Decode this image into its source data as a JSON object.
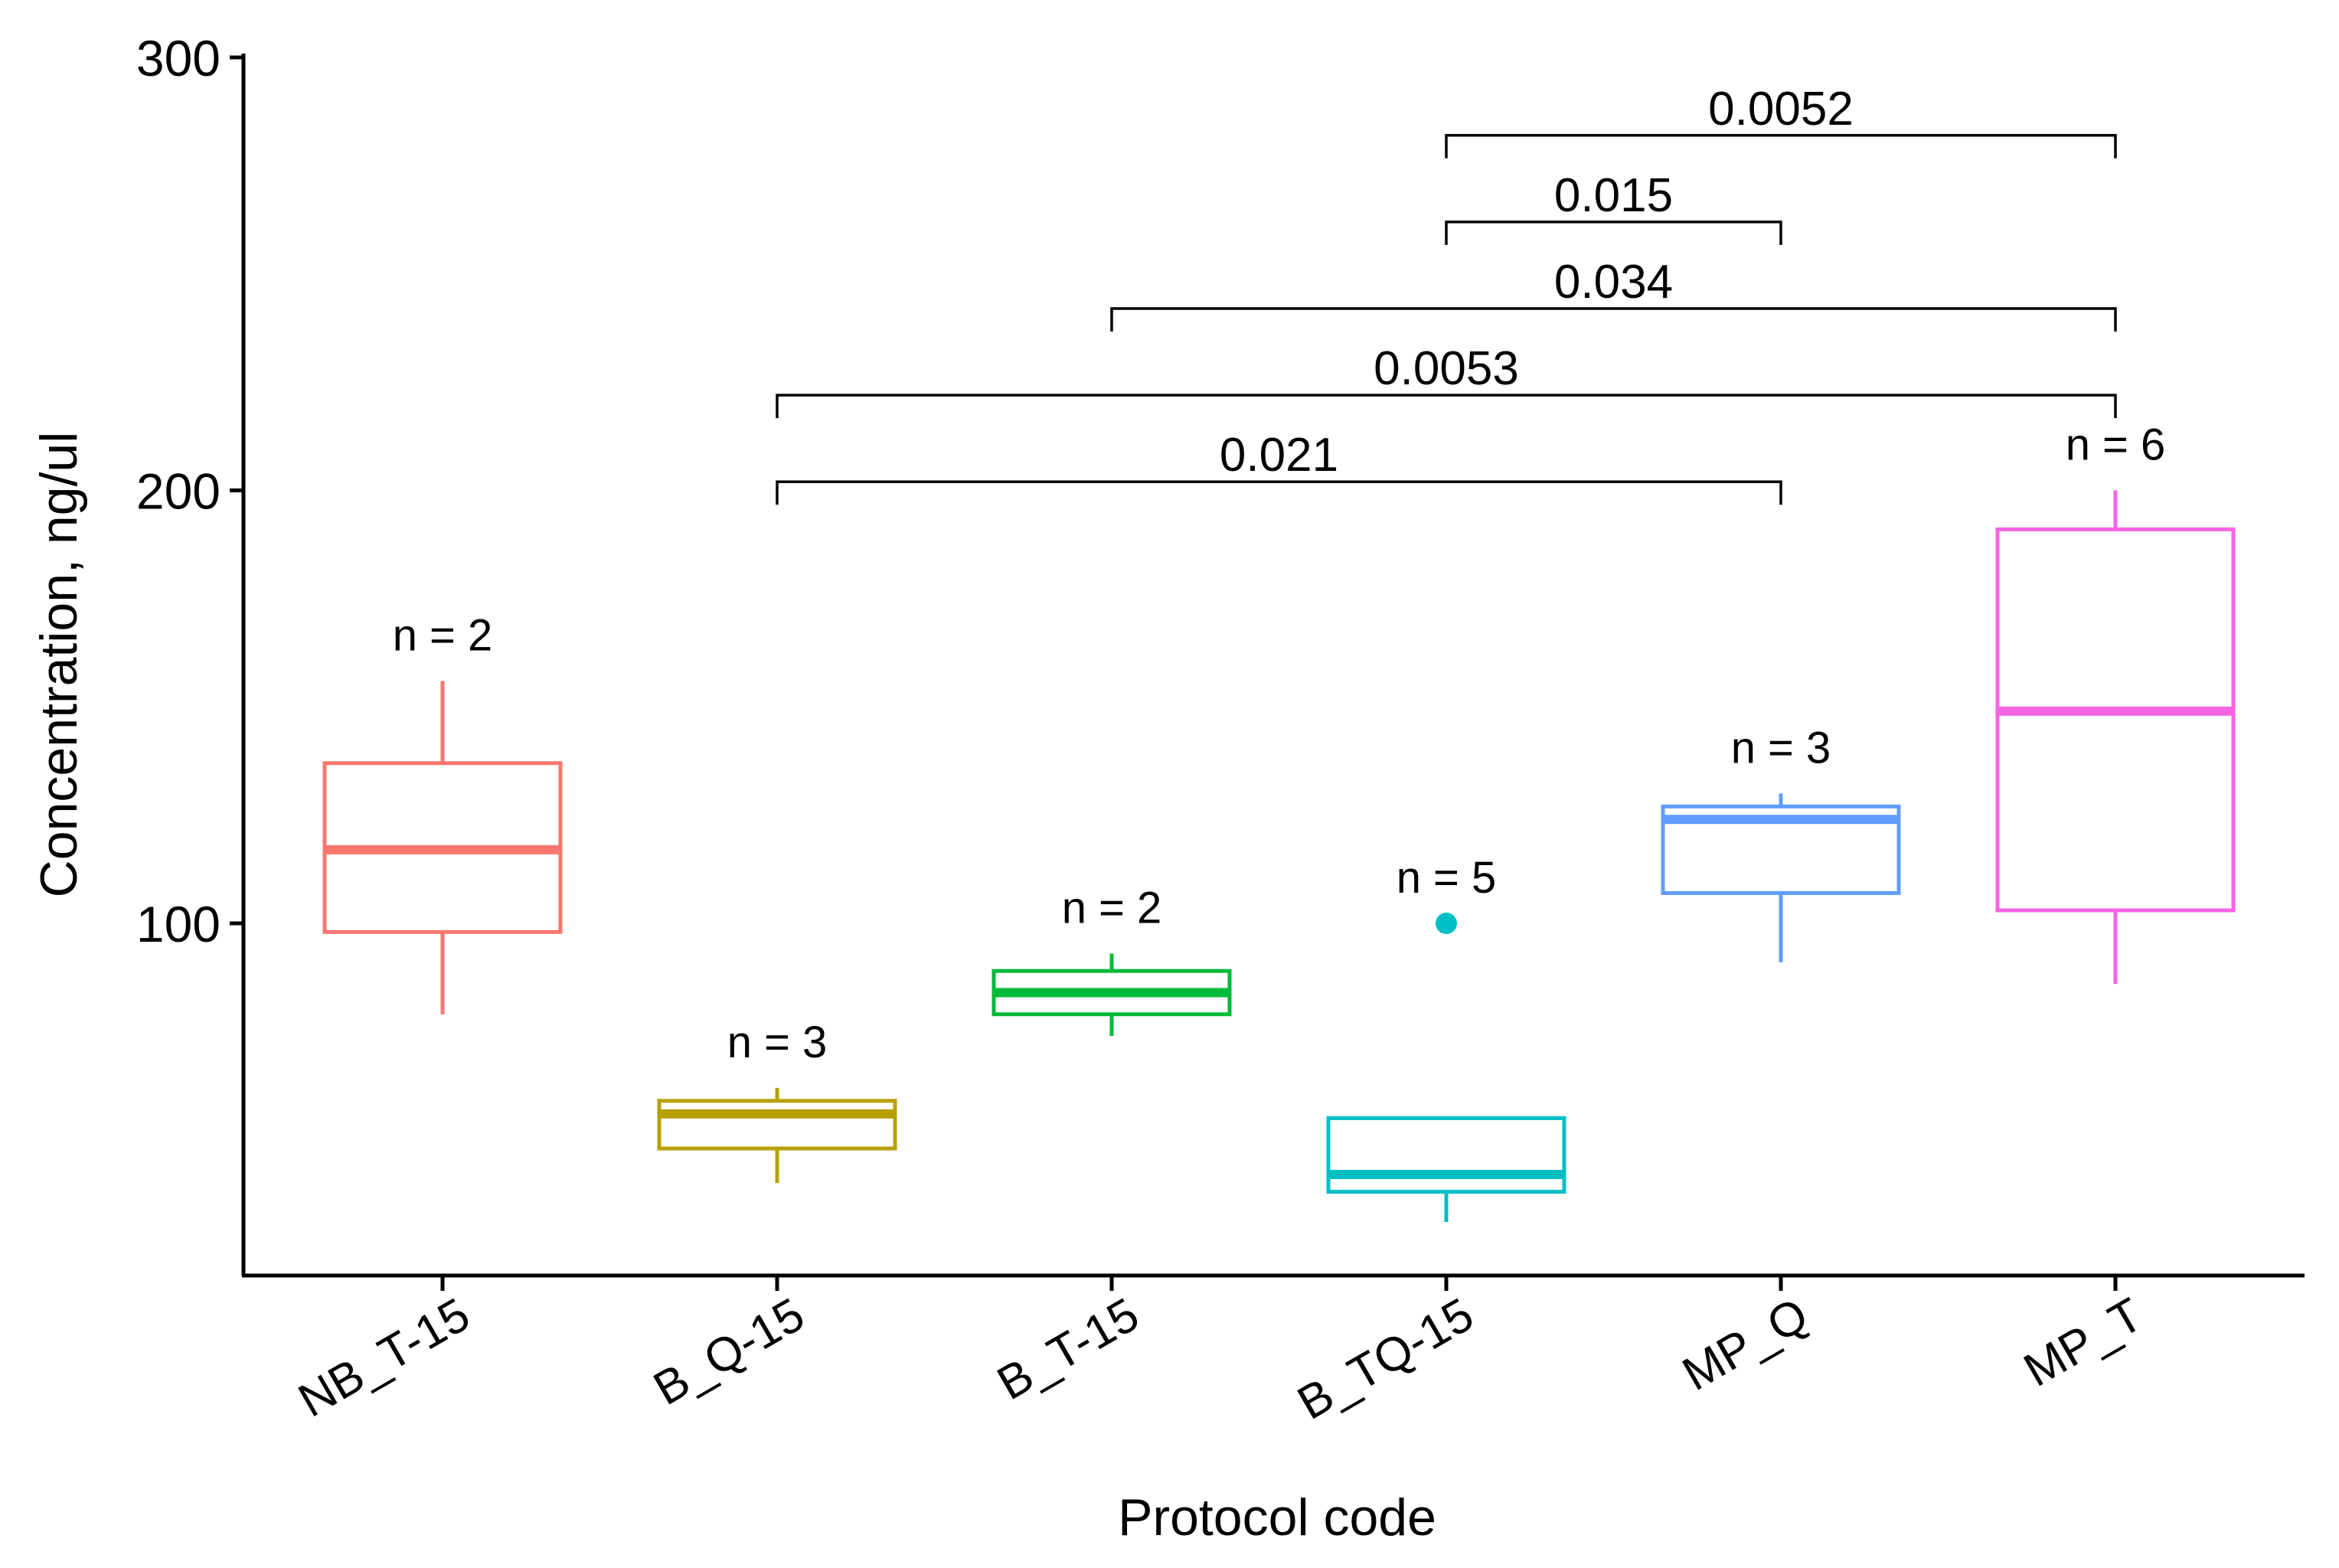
{
  "chart_data": {
    "type": "box",
    "title": "",
    "xlabel": "Protocol code",
    "ylabel": "Concentration, ng/ul",
    "ylim": [
      20,
      300
    ],
    "yticks": [
      100,
      200,
      300
    ],
    "categories": [
      "NB_T-15",
      "B_Q-15",
      "B_T-15",
      "B_TQ-15",
      "MP_Q",
      "MP_T"
    ],
    "boxes": [
      {
        "category": "NB_T-15",
        "n_label": "n = 2",
        "color": "#F8766D",
        "whisker_low": 79,
        "q1": 98,
        "median": 117,
        "q3": 137,
        "whisker_high": 156,
        "outliers": []
      },
      {
        "category": "B_Q-15",
        "n_label": "n = 3",
        "color": "#B79F00",
        "whisker_low": 40,
        "q1": 48,
        "median": 56,
        "q3": 59,
        "whisker_high": 62,
        "outliers": []
      },
      {
        "category": "B_T-15",
        "n_label": "n = 2",
        "color": "#00BA38",
        "whisker_low": 74,
        "q1": 79,
        "median": 84,
        "q3": 89,
        "whisker_high": 93,
        "outliers": []
      },
      {
        "category": "B_TQ-15",
        "n_label": "n = 5",
        "color": "#00BFC4",
        "whisker_low": 31,
        "q1": 38,
        "median": 42,
        "q3": 55,
        "whisker_high": 55,
        "outliers": [
          100
        ]
      },
      {
        "category": "MP_Q",
        "n_label": "n = 3",
        "color": "#619CFF",
        "whisker_low": 91,
        "q1": 107,
        "median": 124,
        "q3": 127,
        "whisker_high": 130,
        "outliers": []
      },
      {
        "category": "MP_T",
        "n_label": "n = 6",
        "color": "#F564E3",
        "whisker_low": 86,
        "q1": 103,
        "median": 149,
        "q3": 191,
        "whisker_high": 200,
        "outliers": []
      }
    ],
    "comparisons": [
      {
        "from": "B_TQ-15",
        "to": "MP_T",
        "p_value": "0.0052",
        "y": 282
      },
      {
        "from": "B_TQ-15",
        "to": "MP_Q",
        "p_value": "0.015",
        "y": 262
      },
      {
        "from": "B_T-15",
        "to": "MP_T",
        "p_value": "0.034",
        "y": 242
      },
      {
        "from": "B_Q-15",
        "to": "MP_T",
        "p_value": "0.0053",
        "y": 222
      },
      {
        "from": "B_Q-15",
        "to": "MP_Q",
        "p_value": "0.021",
        "y": 202
      }
    ],
    "grid": false,
    "legend": "none"
  }
}
